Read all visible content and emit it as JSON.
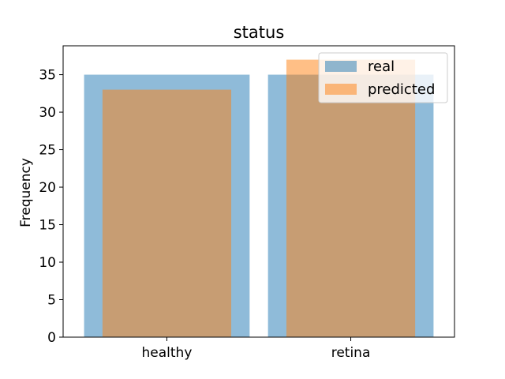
{
  "chart_data": {
    "type": "bar",
    "title": "status",
    "xlabel": "",
    "ylabel": "Frequency",
    "categories": [
      "healthy",
      "retina"
    ],
    "series": [
      {
        "name": "real",
        "values": [
          35,
          35
        ],
        "color": "#1f77b4",
        "alpha": 0.5
      },
      {
        "name": "predicted",
        "values": [
          33,
          37
        ],
        "color": "#ff7f0e",
        "alpha": 0.5
      }
    ],
    "ylim": [
      0,
      38.85
    ],
    "yticks": [
      0,
      5,
      10,
      15,
      20,
      25,
      30,
      35
    ],
    "yticks_labels": [
      "0",
      "5",
      "10",
      "15",
      "20",
      "25",
      "30",
      "35"
    ],
    "grid": false,
    "legend_position": "top-right"
  }
}
